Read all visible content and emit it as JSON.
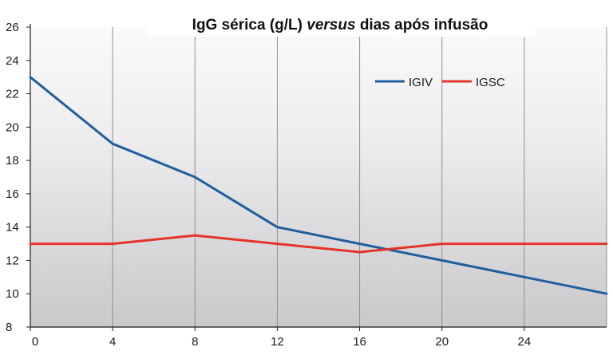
{
  "chart_data": {
    "type": "line",
    "title_parts": [
      {
        "text": "IgG sérica (g/L) ",
        "italic": false
      },
      {
        "text": "versus",
        "italic": true
      },
      {
        "text": " dias após infusão",
        "italic": false
      }
    ],
    "xlabel": "",
    "ylabel": "",
    "x_ticks": [
      0,
      4,
      8,
      12,
      16,
      20,
      24
    ],
    "y_ticks": [
      8,
      10,
      12,
      14,
      16,
      18,
      20,
      22,
      24,
      26
    ],
    "xlim": [
      0,
      28
    ],
    "ylim": [
      8,
      26
    ],
    "grid": {
      "vertical": true,
      "horizontal": false
    },
    "legend_position": "top-right",
    "series": [
      {
        "name": "IGIV",
        "color": "#1f5f9e",
        "points": [
          [
            0,
            23
          ],
          [
            4,
            19
          ],
          [
            8,
            17
          ],
          [
            12,
            14
          ],
          [
            16,
            13
          ],
          [
            20,
            12
          ],
          [
            24,
            11
          ],
          [
            28,
            10
          ]
        ]
      },
      {
        "name": "IGSC",
        "color": "#e5342b",
        "points": [
          [
            0,
            13
          ],
          [
            4,
            13
          ],
          [
            8,
            13.5
          ],
          [
            12,
            13
          ],
          [
            16,
            12.5
          ],
          [
            20,
            13
          ],
          [
            24,
            13
          ],
          [
            28,
            13
          ]
        ]
      }
    ]
  }
}
